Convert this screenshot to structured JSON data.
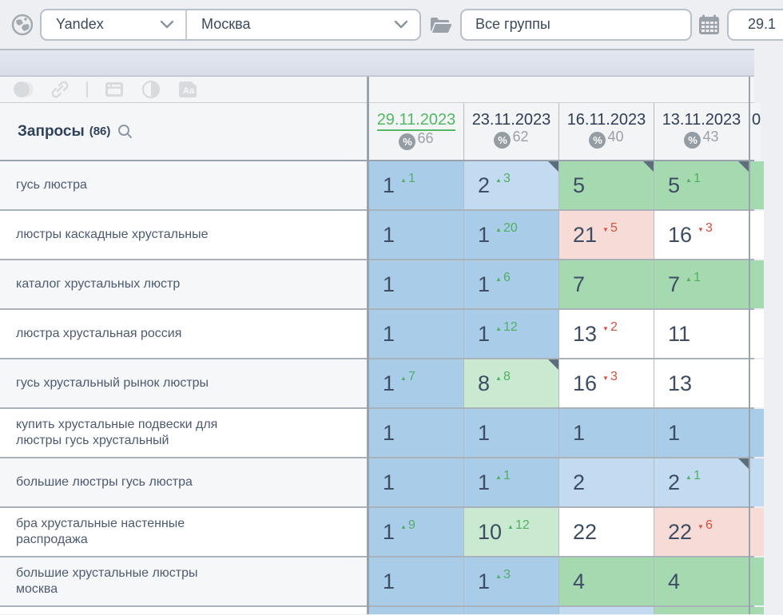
{
  "topbar": {
    "search_engine": "Yandex",
    "region": "Москва",
    "groups": "Все группы",
    "date_value": "29.1"
  },
  "toolbar_icons": [
    "toggle-icon",
    "link-icon",
    "browser-window-icon",
    "contrast-icon",
    "text-style-icon"
  ],
  "table": {
    "title": "Запросы",
    "count": "(86)",
    "columns": [
      {
        "date": "29.11.2023",
        "visibility": "66",
        "selected": true
      },
      {
        "date": "23.11.2023",
        "visibility": "62",
        "selected": false
      },
      {
        "date": "16.11.2023",
        "visibility": "40",
        "selected": false
      },
      {
        "date": "13.11.2023",
        "visibility": "43",
        "selected": false
      },
      {
        "date": "0",
        "visibility": "",
        "selected": false,
        "partial": true
      }
    ],
    "rows": [
      {
        "query": "гусь люстра",
        "cells": [
          {
            "value": "1",
            "delta": "1",
            "dir": "up",
            "color": "blue"
          },
          {
            "value": "2",
            "delta": "3",
            "dir": "up",
            "color": "lightblue",
            "corner": true
          },
          {
            "value": "5",
            "color": "green",
            "corner": true
          },
          {
            "value": "5",
            "delta": "1",
            "dir": "up",
            "color": "green",
            "corner": true
          },
          {
            "color": "green"
          }
        ]
      },
      {
        "query": "люстры каскадные хрустальные",
        "cells": [
          {
            "value": "1",
            "color": "blue"
          },
          {
            "value": "1",
            "delta": "20",
            "dir": "up",
            "color": "blue"
          },
          {
            "value": "21",
            "delta": "5",
            "dir": "down",
            "color": "pink"
          },
          {
            "value": "16",
            "delta": "3",
            "dir": "down",
            "color": "white"
          },
          {
            "color": "white"
          }
        ]
      },
      {
        "query": "каталог хрустальных люстр",
        "cells": [
          {
            "value": "1",
            "color": "blue"
          },
          {
            "value": "1",
            "delta": "6",
            "dir": "up",
            "color": "blue"
          },
          {
            "value": "7",
            "color": "green"
          },
          {
            "value": "7",
            "delta": "1",
            "dir": "up",
            "color": "green"
          },
          {
            "color": "green"
          }
        ]
      },
      {
        "query": "люстра хрустальная россия",
        "cells": [
          {
            "value": "1",
            "color": "blue"
          },
          {
            "value": "1",
            "delta": "12",
            "dir": "up",
            "color": "blue"
          },
          {
            "value": "13",
            "delta": "2",
            "dir": "down",
            "color": "white"
          },
          {
            "value": "11",
            "color": "white"
          },
          {
            "color": "white"
          }
        ]
      },
      {
        "query": "гусь хрустальный рынок люстры",
        "cells": [
          {
            "value": "1",
            "delta": "7",
            "dir": "up",
            "color": "blue"
          },
          {
            "value": "8",
            "delta": "8",
            "dir": "up",
            "color": "lightgreen",
            "corner": true
          },
          {
            "value": "16",
            "delta": "3",
            "dir": "down",
            "color": "white"
          },
          {
            "value": "13",
            "color": "white"
          },
          {
            "color": "white"
          }
        ]
      },
      {
        "query": "купить хрустальные подвески для\nлюстры гусь хрустальный",
        "cells": [
          {
            "value": "1",
            "color": "blue"
          },
          {
            "value": "1",
            "color": "blue"
          },
          {
            "value": "1",
            "color": "blue"
          },
          {
            "value": "1",
            "color": "blue"
          },
          {
            "color": "blue"
          }
        ]
      },
      {
        "query": "большие люстры гусь люстра",
        "cells": [
          {
            "value": "1",
            "color": "blue"
          },
          {
            "value": "1",
            "delta": "1",
            "dir": "up",
            "color": "blue"
          },
          {
            "value": "2",
            "color": "lightblue"
          },
          {
            "value": "2",
            "delta": "1",
            "dir": "up",
            "color": "lightblue",
            "corner": true
          },
          {
            "color": "lightblue"
          }
        ]
      },
      {
        "query": "бра хрустальные настенные\nраспродажа",
        "cells": [
          {
            "value": "1",
            "delta": "9",
            "dir": "up",
            "color": "blue"
          },
          {
            "value": "10",
            "delta": "12",
            "dir": "up",
            "color": "lightgreen"
          },
          {
            "value": "22",
            "color": "white"
          },
          {
            "value": "22",
            "delta": "6",
            "dir": "down",
            "color": "pink"
          },
          {
            "color": "pink"
          }
        ]
      },
      {
        "query": "большие хрустальные люстры\nмосква",
        "cells": [
          {
            "value": "1",
            "color": "blue"
          },
          {
            "value": "1",
            "delta": "3",
            "dir": "up",
            "color": "blue"
          },
          {
            "value": "4",
            "color": "green"
          },
          {
            "value": "4",
            "color": "green"
          },
          {
            "color": "green"
          }
        ]
      }
    ],
    "partial_row_colors": [
      "blue",
      "blue",
      "lightblue",
      "green",
      "green"
    ]
  },
  "colors": {
    "position_top3": "#a9cce9",
    "position_2_3": "#c2dbf0",
    "position_4_7": "#a5dab0",
    "position_8_10": "#c9ead0",
    "dropped": "#f6dbd7",
    "delta_up": "#53ae63",
    "delta_down": "#d8503e",
    "selected_date": "#53b863",
    "text_main": "#3e4d63"
  }
}
